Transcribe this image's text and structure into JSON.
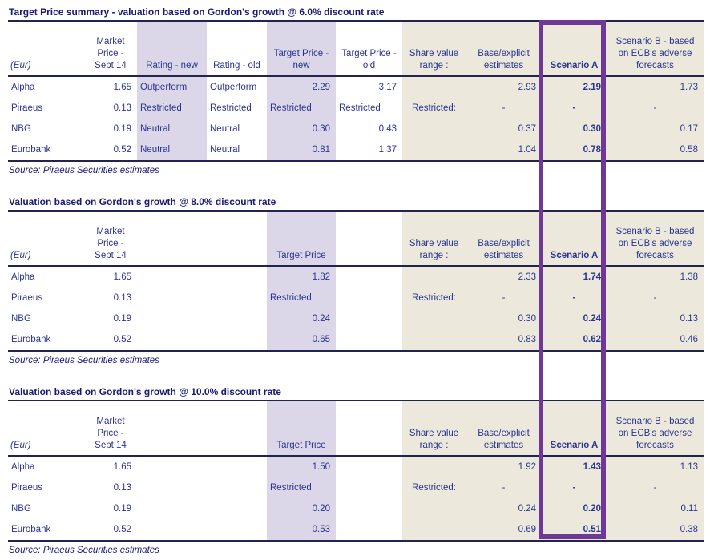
{
  "colors": {
    "body_text": "#2B3590",
    "title_text": "#1A1A73",
    "lavender_column": "#DBD6E8",
    "beige_column": "#ECE9DC",
    "highlight_border": "#703896",
    "rule_lines": "#23234F"
  },
  "tables": [
    {
      "title": "Target Price summary - valuation based on Gordon's growth @ 6.0% discount rate",
      "headers": [
        "(Eur)",
        "Market Price -\nSept 14",
        "Rating - new",
        "Rating - old",
        "Target Price -\nnew",
        "Target Price -\nold",
        "Share value\nrange :",
        "Base/explicit\nestimates",
        "Scenario A",
        "Scenario B - based\non ECB's adverse\nforecasts"
      ],
      "rows": [
        [
          "Alpha",
          "1.65",
          "Outperform",
          "Outperform",
          "2.29",
          "3.17",
          "",
          "2.93",
          "2.19",
          "1.73"
        ],
        [
          "Piraeus",
          "0.13",
          "Restricted",
          "Restricted",
          "Restricted",
          "Restricted",
          "Restricted:",
          "-",
          "-",
          "-"
        ],
        [
          "NBG",
          "0.19",
          "Neutral",
          "Neutral",
          "0.30",
          "0.43",
          "",
          "0.37",
          "0.30",
          "0.17"
        ],
        [
          "Eurobank",
          "0.52",
          "Neutral",
          "Neutral",
          "0.81",
          "1.37",
          "",
          "1.04",
          "0.78",
          "0.58"
        ]
      ],
      "source": "Source: Piraeus Securities estimates"
    },
    {
      "title": "Valuation based on Gordon's growth @ 8.0% discount rate",
      "headers": [
        "(Eur)",
        "Market Price -\nSept 14",
        "",
        "",
        "Target Price",
        "",
        "Share value\nrange :",
        "Base/explicit\nestimates",
        "Scenario A",
        "Scenario B - based\non ECB's adverse\nforecasts"
      ],
      "rows": [
        [
          "Alpha",
          "1.65",
          "",
          "",
          "1.82",
          "",
          "",
          "2.33",
          "1.74",
          "1.38"
        ],
        [
          "Piraeus",
          "0.13",
          "",
          "",
          "Restricted",
          "",
          "Restricted:",
          "-",
          "-",
          "-"
        ],
        [
          "NBG",
          "0.19",
          "",
          "",
          "0.24",
          "",
          "",
          "0.30",
          "0.24",
          "0.13"
        ],
        [
          "Eurobank",
          "0.52",
          "",
          "",
          "0.65",
          "",
          "",
          "0.83",
          "0.62",
          "0.46"
        ]
      ],
      "source": "Source: Piraeus Securities estimates"
    },
    {
      "title": "Valuation based on Gordon's growth @ 10.0% discount rate",
      "headers": [
        "(Eur)",
        "Market Price -\nSept 14",
        "",
        "",
        "Target Price",
        "",
        "Share value\nrange :",
        "Base/explicit\nestimates",
        "Scenario A",
        "Scenario B - based\non ECB's adverse\nforecasts"
      ],
      "rows": [
        [
          "Alpha",
          "1.65",
          "",
          "",
          "1.50",
          "",
          "",
          "1.92",
          "1.43",
          "1.13"
        ],
        [
          "Piraeus",
          "0.13",
          "",
          "",
          "Restricted",
          "",
          "Restricted:",
          "-",
          "-",
          "-"
        ],
        [
          "NBG",
          "0.19",
          "",
          "",
          "0.20",
          "",
          "",
          "0.24",
          "0.20",
          "0.11"
        ],
        [
          "Eurobank",
          "0.52",
          "",
          "",
          "0.53",
          "",
          "",
          "0.69",
          "0.51",
          "0.38"
        ]
      ],
      "source": "Source: Piraeus Securities estimates"
    }
  ]
}
